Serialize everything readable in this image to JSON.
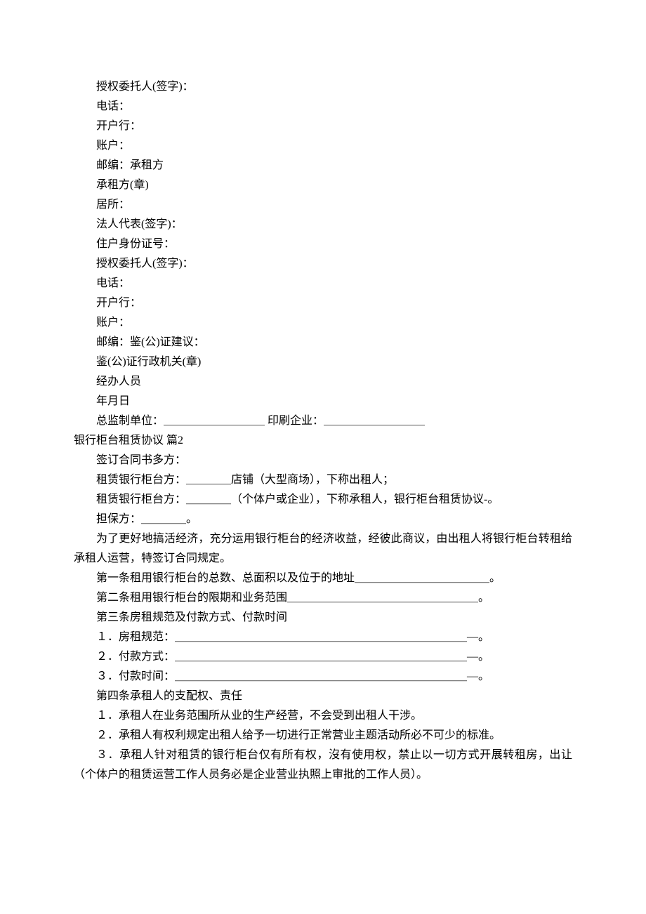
{
  "lines": {
    "l1": "授权委托人(签字)：",
    "l2": "电话：",
    "l3": "开户行：",
    "l4": "账户：",
    "l5": "邮编：承租方",
    "l6": "承租方(章)",
    "l7": "居所：",
    "l8": "法人代表(签字)：",
    "l9": "住户身份证号：",
    "l10": "授权委托人(签字)：",
    "l11": "电话：",
    "l12": "开户行：",
    "l13": "账户：",
    "l14": "邮编：鉴(公)证建议：",
    "l15": "鉴(公)证行政机关(章)",
    "l16": "经办人员",
    "l17": "年月日",
    "l18": "总监制单位：＿＿＿＿＿＿＿＿＿ 印刷企业：＿＿＿＿＿＿＿＿＿",
    "l19": "银行柜台租赁协议 篇2",
    "l20": "签订合同书多方：",
    "l21": "租赁银行柜台方：＿＿＿＿店铺（大型商场），下称出租人；",
    "l22": "租赁银行柜台方：＿＿＿＿（个体户或企业），下称承租人，银行柜台租赁协议-。",
    "l23": "担保方：＿＿＿＿。",
    "l24": "为了更好地搞活经济，充分运用银行柜台的经济收益，经彼此商议，由出租人将银行柜台转租给承租人运营，特签订合同规定。",
    "l25": "第一条租用银行柜台的总数、总面积以及位于的地址＿＿＿＿＿＿＿＿＿＿＿＿。",
    "l26": "第二条租用银行柜台的限期和业务范围＿＿＿＿＿＿＿＿＿＿＿＿＿＿＿＿＿。",
    "l27": "第三条房租规范及付款方式、付款时间",
    "l28": "１．房租规范：＿＿＿＿＿＿＿＿＿＿＿＿＿＿＿＿＿＿＿＿＿＿＿＿＿＿—。",
    "l29": "２．付款方式：＿＿＿＿＿＿＿＿＿＿＿＿＿＿＿＿＿＿＿＿＿＿＿＿＿＿—。",
    "l30": "３．付款时间：＿＿＿＿＿＿＿＿＿＿＿＿＿＿＿＿＿＿＿＿＿＿＿＿＿＿—。",
    "l31": "第四条承租人的支配权、责任",
    "l32": "１．承租人在业务范围所从业的生产经营，不会受到出租人干涉。",
    "l33": "２．承租人有权利规定出租人给予一切进行正常营业主题活动所必不可少的标准。",
    "l34": "３．承租人针对租赁的银行柜台仅有所有权，沒有使用权，禁止以一切方式开展转租房，出让（个体户的租赁运营工作人员务必是企业营业执照上审批的工作人员）。"
  }
}
